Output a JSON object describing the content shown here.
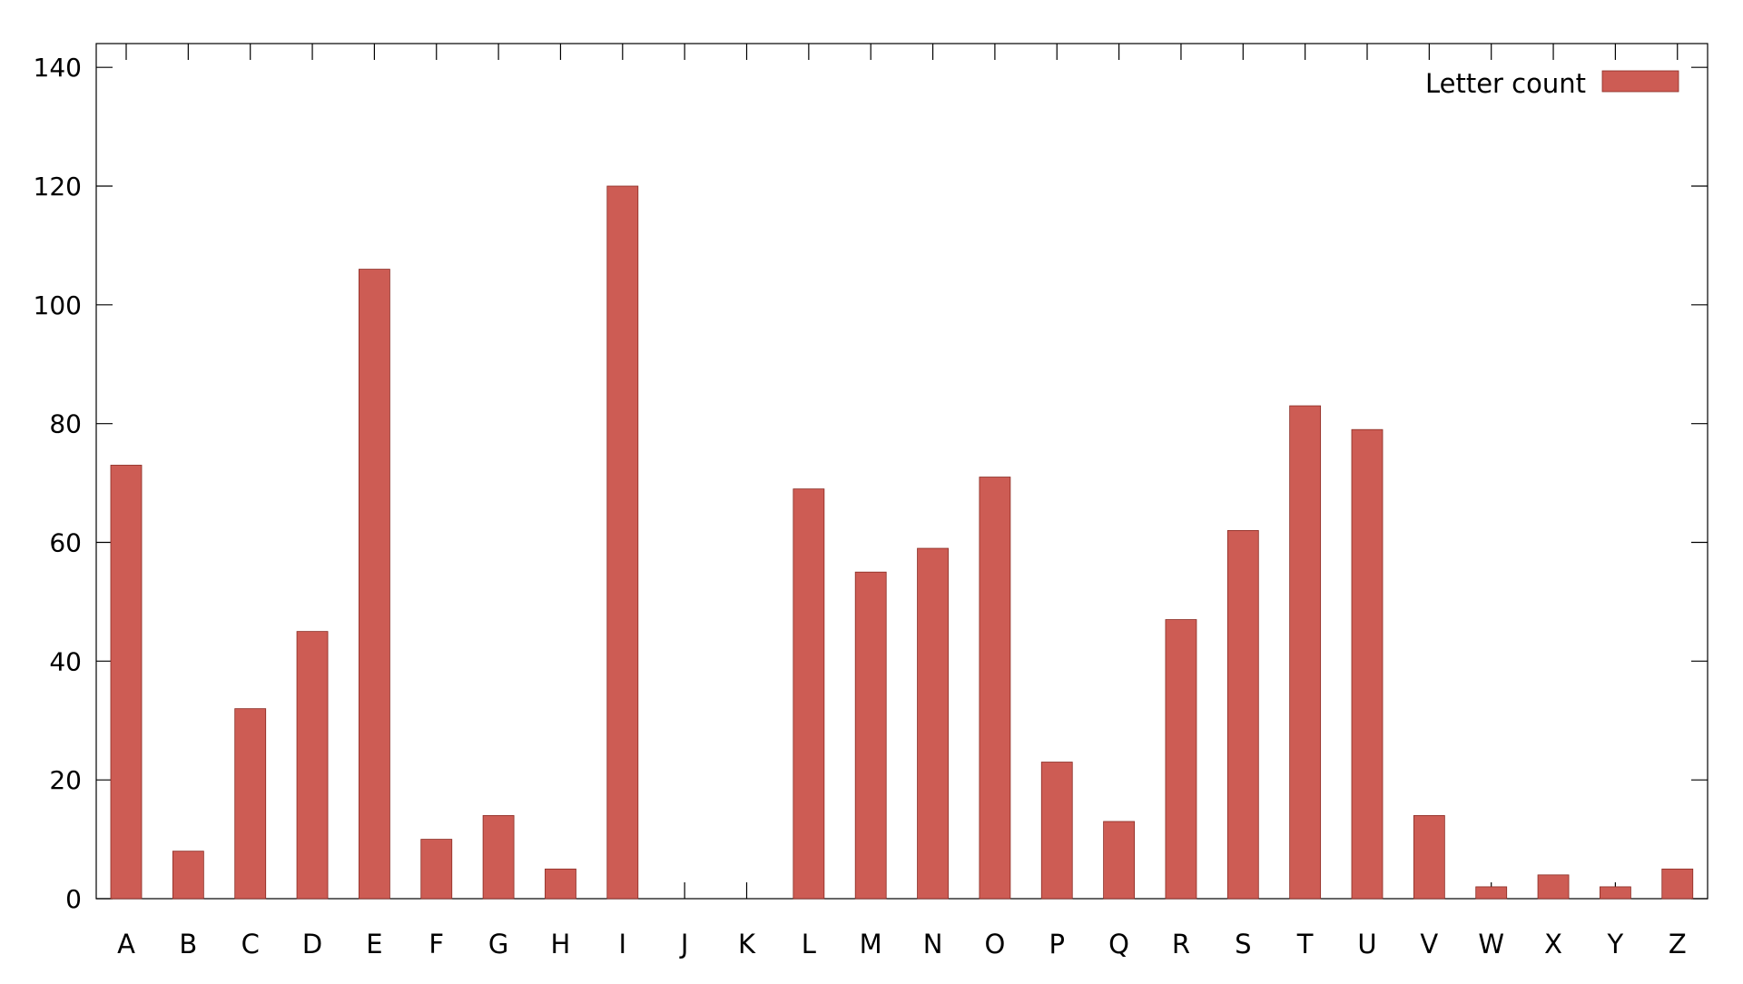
{
  "chart_data": {
    "type": "bar",
    "title": "",
    "xlabel": "",
    "ylabel": "",
    "categories": [
      "A",
      "B",
      "C",
      "D",
      "E",
      "F",
      "G",
      "H",
      "I",
      "J",
      "K",
      "L",
      "M",
      "N",
      "O",
      "P",
      "Q",
      "R",
      "S",
      "T",
      "U",
      "V",
      "W",
      "X",
      "Y",
      "Z"
    ],
    "series": [
      {
        "name": "Letter count",
        "color": "#CD5C54",
        "values": [
          73,
          8,
          32,
          45,
          106,
          10,
          14,
          5,
          120,
          0,
          0,
          69,
          55,
          59,
          71,
          23,
          13,
          47,
          62,
          83,
          79,
          14,
          2,
          4,
          2,
          5
        ]
      }
    ],
    "ylim": [
      0,
      144
    ],
    "yticks": [
      0,
      20,
      40,
      60,
      80,
      100,
      120,
      140
    ],
    "grid": false,
    "legend_position": "top-right"
  }
}
